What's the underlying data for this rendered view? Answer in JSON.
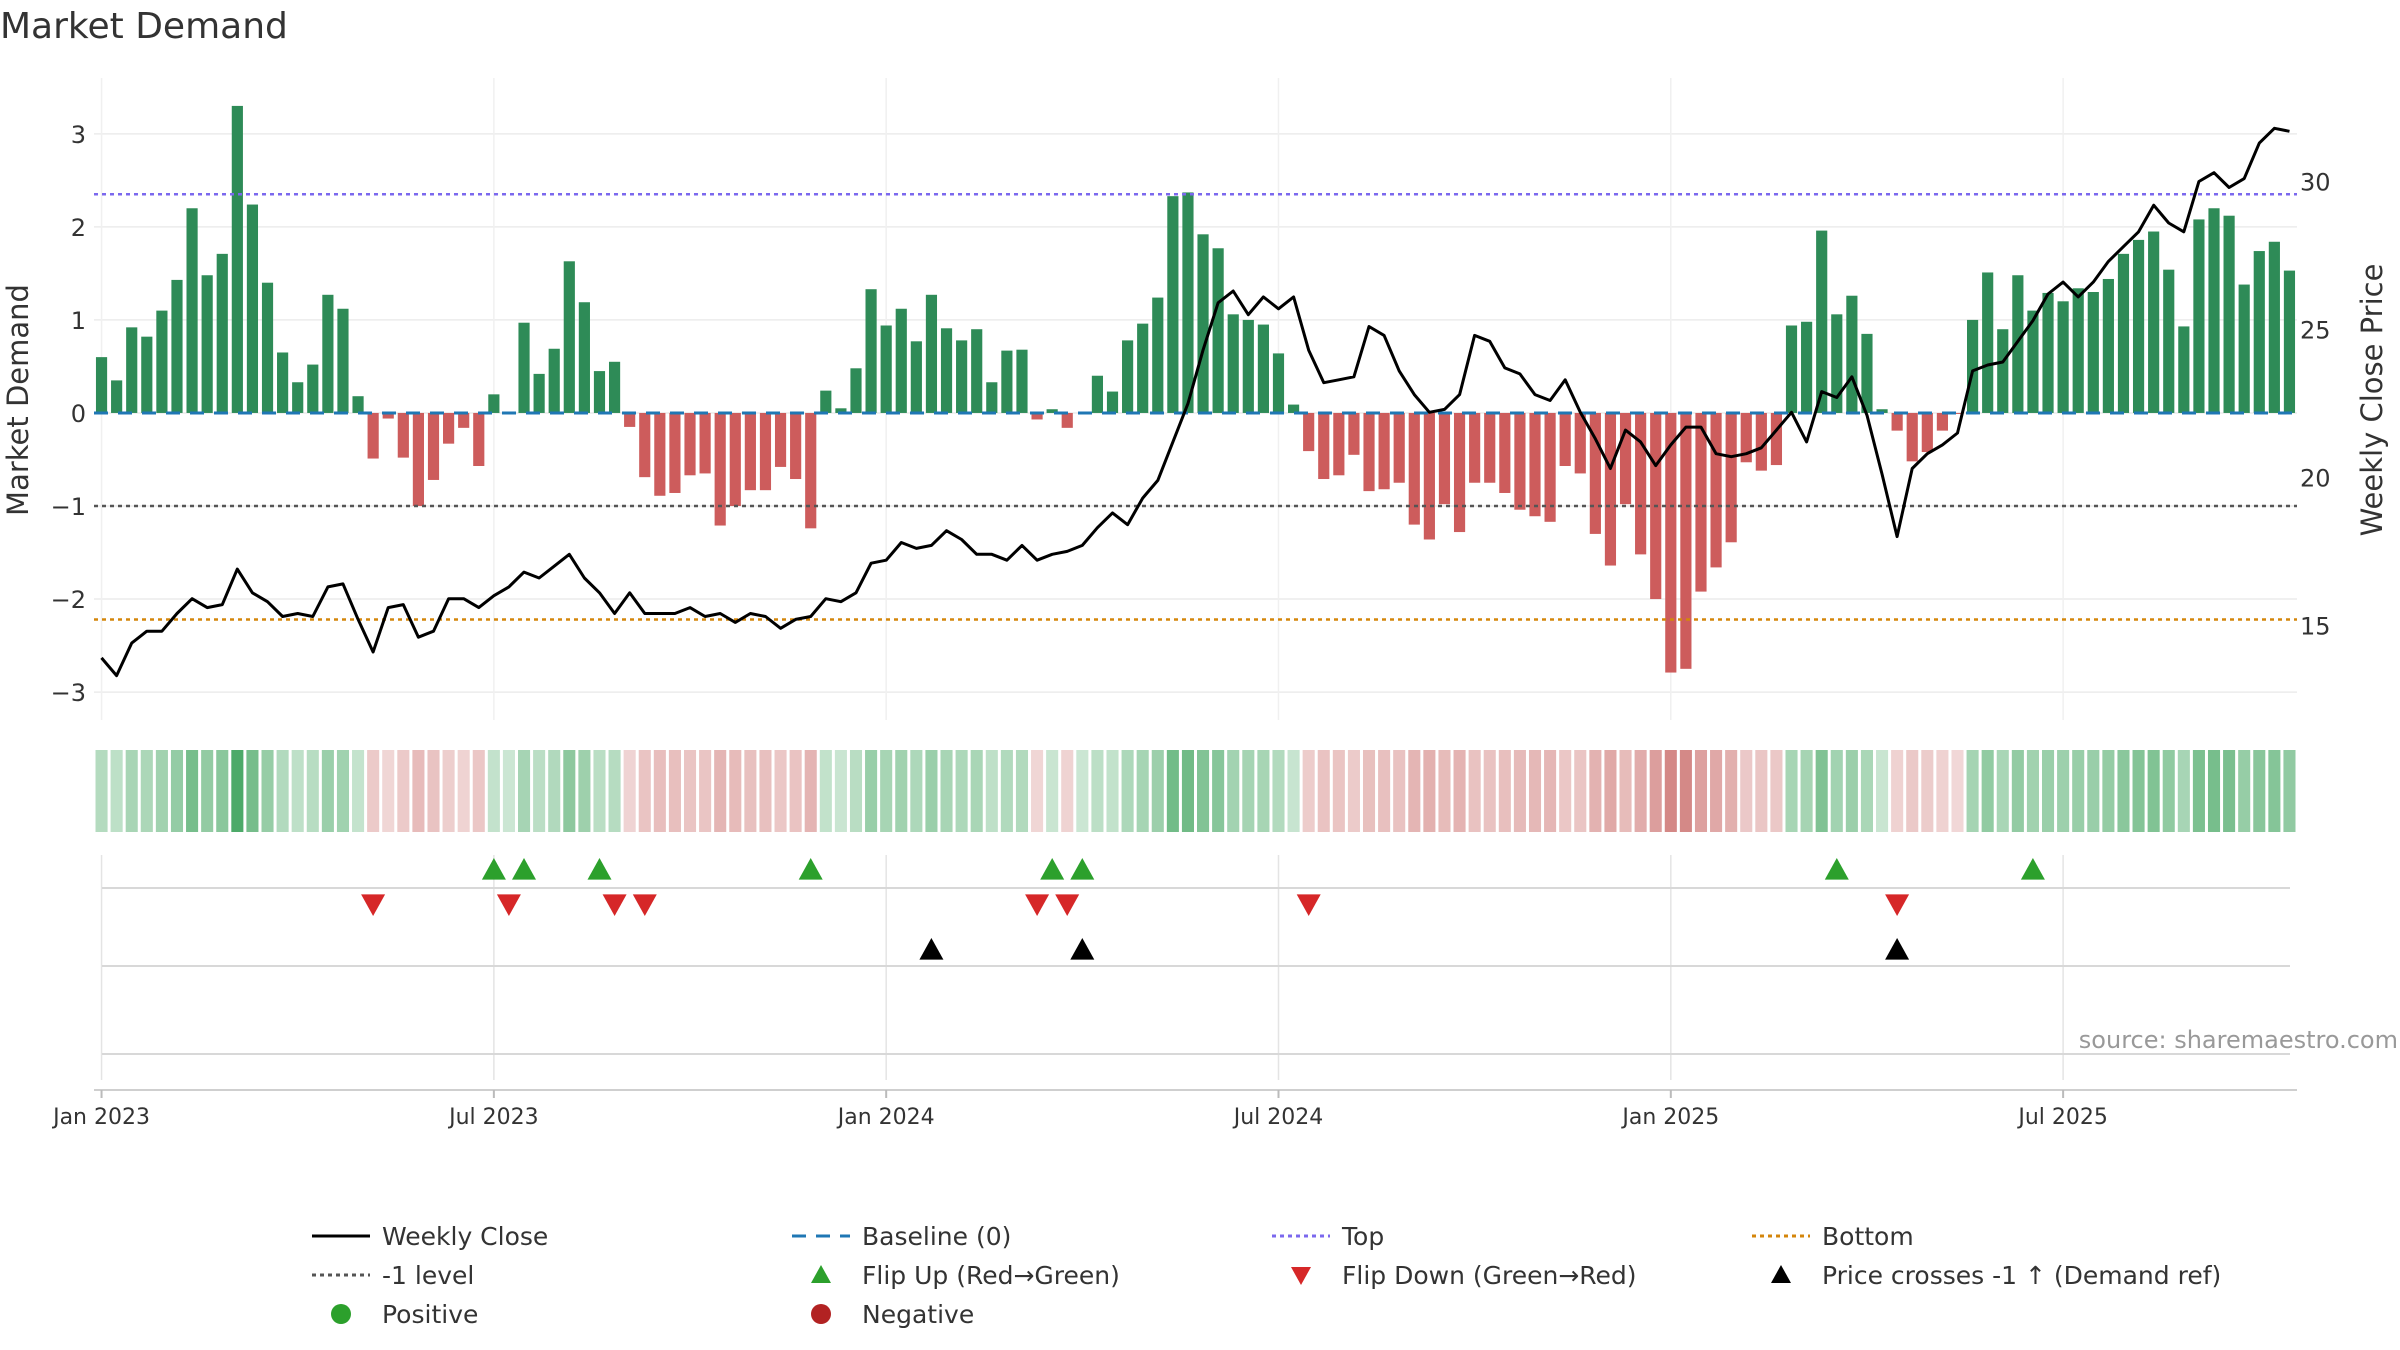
{
  "title": "Market Demand",
  "source": "source: sharemaestro.com",
  "colors": {
    "pos_bar": "#2e8b57",
    "neg_bar": "#cd5c5c",
    "price": "#000000",
    "baseline": "#1f77b4",
    "top": "#7b68ee",
    "bottom": "#d4860b",
    "minus1": "#555555",
    "flip_up": "#2ca02c",
    "flip_down": "#d62728",
    "cross": "#000000",
    "positive_dot": "#2ca02c",
    "negative_dot": "#b22222"
  },
  "legend": [
    {
      "key": "weekly_close",
      "label": "Weekly Close"
    },
    {
      "key": "baseline",
      "label": "Baseline (0)"
    },
    {
      "key": "top",
      "label": "Top"
    },
    {
      "key": "bottom",
      "label": "Bottom"
    },
    {
      "key": "minus1",
      "label": "-1 level"
    },
    {
      "key": "flip_up",
      "label": "Flip Up (Red→Green)"
    },
    {
      "key": "flip_down",
      "label": "Flip Down (Green→Red)"
    },
    {
      "key": "cross",
      "label": "Price crosses -1 ↑ (Demand ref)"
    },
    {
      "key": "positive",
      "label": "Positive"
    },
    {
      "key": "negative",
      "label": "Negative"
    }
  ],
  "chart_data": {
    "type": "bar",
    "title": "Market Demand",
    "ylabel": "Market Demand",
    "y2label": "Weekly Close Price",
    "ylim": [
      -3.3,
      3.6
    ],
    "y2lim": [
      11.8,
      33.5
    ],
    "yticks": [
      -3,
      -2,
      -1,
      0,
      1,
      2,
      3
    ],
    "yticklabels": [
      "−3",
      "−2",
      "−1",
      "0",
      "1",
      "2",
      "3"
    ],
    "y2ticks": [
      15,
      20,
      25,
      30
    ],
    "y2ticklabels": [
      "15",
      "20",
      "25",
      "30"
    ],
    "top_level": 2.35,
    "bottom_level": -2.22,
    "minus1_level": -1,
    "xticks": [
      {
        "week": 1,
        "label": "Jan 2023"
      },
      {
        "week": 27,
        "label": "Jul 2023"
      },
      {
        "week": 53,
        "label": "Jan 2024"
      },
      {
        "week": 79,
        "label": "Jul 2024"
      },
      {
        "week": 105,
        "label": "Jan 2025"
      },
      {
        "week": 131,
        "label": "Jul 2025"
      }
    ],
    "demand": [
      0.6,
      0.35,
      0.92,
      0.82,
      1.1,
      1.43,
      2.2,
      1.48,
      1.71,
      3.3,
      2.24,
      1.4,
      0.65,
      0.33,
      0.52,
      1.27,
      1.12,
      0.18,
      -0.49,
      -0.06,
      -0.48,
      -1.0,
      -0.72,
      -0.33,
      -0.16,
      -0.57,
      0.2,
      0.0,
      0.97,
      0.42,
      0.69,
      1.63,
      1.19,
      0.45,
      0.55,
      -0.15,
      -0.69,
      -0.89,
      -0.86,
      -0.67,
      -0.65,
      -1.21,
      -1.0,
      -0.83,
      -0.83,
      -0.58,
      -0.71,
      -1.24,
      0.24,
      0.05,
      0.48,
      1.33,
      0.94,
      1.12,
      0.77,
      1.27,
      0.91,
      0.78,
      0.9,
      0.33,
      0.67,
      0.68,
      -0.07,
      0.04,
      -0.16,
      0.0,
      0.4,
      0.23,
      0.78,
      0.96,
      1.24,
      2.33,
      2.37,
      1.92,
      1.77,
      1.06,
      1.0,
      0.95,
      0.64,
      0.09,
      -0.41,
      -0.71,
      -0.67,
      -0.45,
      -0.84,
      -0.82,
      -0.75,
      -1.2,
      -1.36,
      -0.98,
      -1.28,
      -0.75,
      -0.75,
      -0.86,
      -1.04,
      -1.11,
      -1.17,
      -0.57,
      -0.65,
      -1.3,
      -1.64,
      -0.98,
      -1.52,
      -2.0,
      -2.79,
      -2.75,
      -1.92,
      -1.66,
      -1.39,
      -0.53,
      -0.62,
      -0.56,
      0.94,
      0.98,
      1.96,
      1.06,
      1.26,
      0.85,
      0.04,
      -0.19,
      -0.52,
      -0.42,
      -0.19,
      -0.01,
      1.0,
      1.51,
      0.9,
      1.48,
      1.1,
      1.29,
      1.2,
      1.34,
      1.3,
      1.44,
      1.71,
      1.86,
      1.95,
      1.54,
      0.93,
      2.08,
      2.2,
      2.12,
      1.38,
      1.74,
      1.84,
      1.53
    ],
    "price": [
      13.9,
      13.3,
      14.4,
      14.8,
      14.8,
      15.4,
      15.9,
      15.6,
      15.7,
      16.9,
      16.1,
      15.8,
      15.3,
      15.4,
      15.3,
      16.3,
      16.4,
      15.2,
      14.1,
      15.6,
      15.7,
      14.6,
      14.8,
      15.9,
      15.9,
      15.6,
      16.0,
      16.3,
      16.8,
      16.6,
      17.0,
      17.4,
      16.6,
      16.1,
      15.4,
      16.1,
      15.4,
      15.4,
      15.4,
      15.6,
      15.3,
      15.4,
      15.1,
      15.4,
      15.3,
      14.9,
      15.2,
      15.3,
      15.9,
      15.8,
      16.1,
      17.1,
      17.2,
      17.8,
      17.6,
      17.7,
      18.2,
      17.9,
      17.4,
      17.4,
      17.2,
      17.7,
      17.2,
      17.4,
      17.5,
      17.7,
      18.3,
      18.8,
      18.4,
      19.3,
      19.9,
      21.2,
      22.5,
      24.3,
      25.9,
      26.3,
      25.5,
      26.1,
      25.7,
      26.1,
      24.3,
      23.2,
      23.3,
      23.4,
      25.1,
      24.8,
      23.6,
      22.8,
      22.2,
      22.3,
      22.8,
      24.8,
      24.6,
      23.7,
      23.5,
      22.8,
      22.6,
      23.3,
      22.2,
      21.3,
      20.3,
      21.6,
      21.2,
      20.4,
      21.1,
      21.7,
      21.7,
      20.8,
      20.7,
      20.8,
      21.0,
      21.6,
      22.2,
      21.2,
      22.9,
      22.7,
      23.4,
      22.1,
      20.1,
      18.0,
      20.3,
      20.8,
      21.1,
      21.5,
      23.6,
      23.8,
      23.9,
      24.6,
      25.3,
      26.2,
      26.6,
      26.1,
      26.6,
      27.3,
      27.8,
      28.3,
      29.2,
      28.6,
      28.3,
      30.0,
      30.3,
      29.8,
      30.1,
      31.3,
      31.8,
      31.7
    ],
    "flip_up_weeks": [
      27,
      29,
      34,
      48,
      64,
      66,
      116,
      129
    ],
    "flip_down_weeks": [
      19,
      28,
      35,
      37,
      63,
      65,
      81,
      120
    ],
    "cross_weeks": [
      56,
      66,
      120
    ]
  }
}
